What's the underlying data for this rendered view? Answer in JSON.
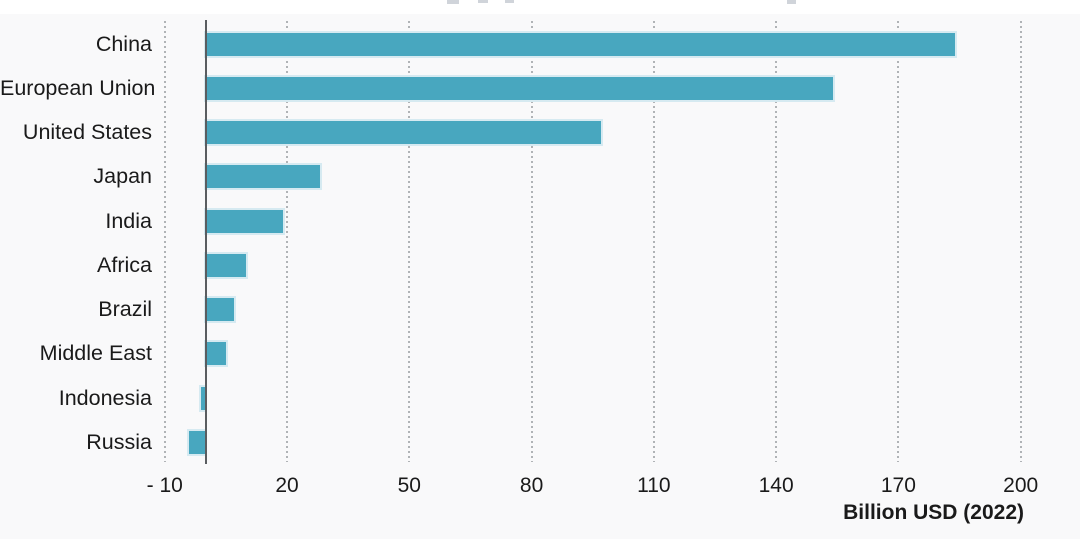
{
  "chart_data": {
    "type": "bar",
    "orientation": "horizontal",
    "title": "",
    "xlabel": "Billion USD (2022)",
    "ylabel": "",
    "categories": [
      "China",
      "European Union",
      "United States",
      "Japan",
      "India",
      "Africa",
      "Brazil",
      "Middle East",
      "Indonesia",
      "Russia"
    ],
    "values": [
      184,
      154,
      97,
      28,
      19,
      10,
      7,
      5,
      -1,
      -4
    ],
    "x_tick_values": [
      -10,
      20,
      50,
      80,
      110,
      140,
      170,
      200
    ],
    "x_tick_labels": [
      "- 10",
      "20",
      "50",
      "80",
      "110",
      "140",
      "170",
      "200"
    ],
    "xlim": [
      -15,
      215
    ],
    "grid": "vertical-dotted",
    "legend": "none",
    "colors": {
      "bar_fill": "#48a7bf",
      "bar_halo": "#d6eaf1",
      "gridline": "#b0b3b6",
      "zero_axis": "#5a5d60",
      "text": "#1a1a1a",
      "background": "#f9f9fa"
    }
  }
}
